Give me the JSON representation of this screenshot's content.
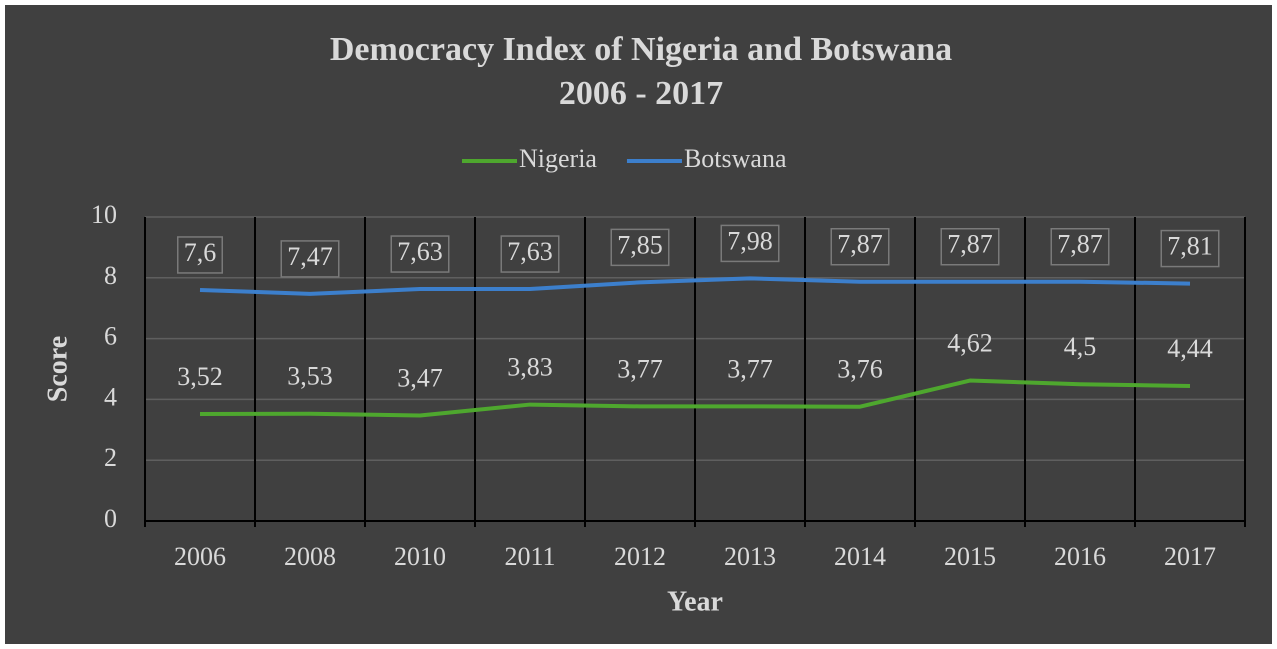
{
  "chart_data": {
    "type": "line",
    "title": "Democracy Index of Nigeria and Botswana",
    "subtitle": "2006 - 2017",
    "x_label": "Year",
    "y_label": "Score",
    "categories": [
      "2006",
      "2008",
      "2010",
      "2011",
      "2012",
      "2013",
      "2014",
      "2015",
      "2016",
      "2017"
    ],
    "series": [
      {
        "name": "Nigeria",
        "color": "#4ea72e",
        "values": [
          3.52,
          3.53,
          3.47,
          3.83,
          3.77,
          3.77,
          3.76,
          4.62,
          4.5,
          4.44
        ],
        "value_labels": [
          "3,52",
          "3,53",
          "3,47",
          "3,83",
          "3,77",
          "3,77",
          "3,76",
          "4,62",
          "4,5",
          "4,44"
        ]
      },
      {
        "name": "Botswana",
        "color": "#3c7fcc",
        "values": [
          7.6,
          7.47,
          7.63,
          7.63,
          7.85,
          7.98,
          7.87,
          7.87,
          7.87,
          7.81
        ],
        "value_labels": [
          "7,6",
          "7,47",
          "7,63",
          "7,63",
          "7,85",
          "7,98",
          "7,87",
          "7,87",
          "7,87",
          "7,81"
        ]
      }
    ],
    "ylim": [
      0,
      10
    ],
    "yticks": [
      0,
      2,
      4,
      6,
      8,
      10
    ],
    "grid": true,
    "legend": "top"
  }
}
